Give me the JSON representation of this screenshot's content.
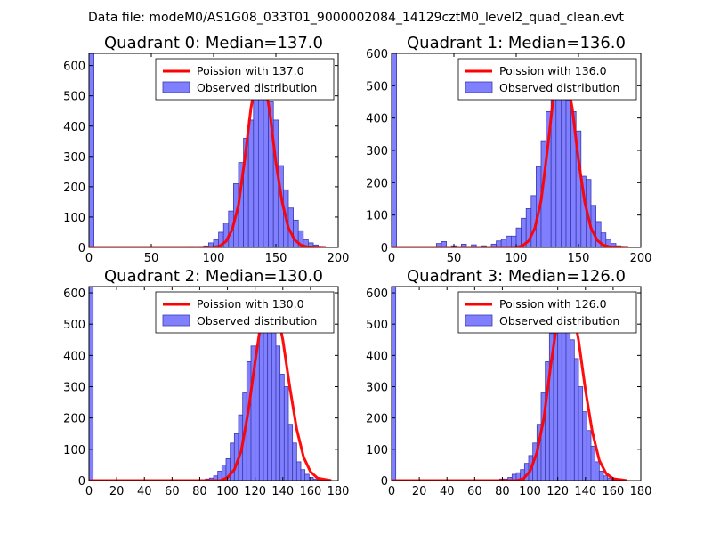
{
  "figure_title": "Data file: modeM0/AS1G08_033T01_9000002084_14129cztM0_level2_quad_clean.evt",
  "colors": {
    "bar_fill": "#8080ff",
    "bar_edge": "#3a3ab0",
    "curve": "#ff0000",
    "axis": "#000000",
    "background": "#ffffff"
  },
  "chart_data": [
    {
      "type": "bar",
      "title": "Quadrant 0: Median=137.0",
      "xlim": [
        0,
        200
      ],
      "ylim": [
        0,
        640
      ],
      "xticks": [
        0,
        50,
        100,
        150,
        200
      ],
      "yticks": [
        0,
        100,
        200,
        300,
        400,
        500,
        600
      ],
      "legend_position": "top-right",
      "series": [
        {
          "name": "Poission with 137.0",
          "kind": "line",
          "mean": 137.0,
          "x": [
            0,
            100,
            105,
            110,
            115,
            120,
            125,
            130,
            135,
            137,
            140,
            145,
            150,
            155,
            160,
            165,
            170,
            175,
            190
          ],
          "y": [
            0,
            0,
            5,
            20,
            60,
            140,
            290,
            460,
            580,
            610,
            565,
            450,
            280,
            150,
            65,
            25,
            8,
            2,
            0
          ]
        },
        {
          "name": "Observed distribution",
          "kind": "histogram",
          "bin_width": 4,
          "bins": [
            0,
            80,
            88,
            92,
            96,
            100,
            104,
            108,
            112,
            116,
            120,
            124,
            128,
            132,
            136,
            140,
            144,
            148,
            152,
            156,
            160,
            164,
            168,
            172,
            176,
            180,
            184
          ],
          "counts": [
            640,
            3,
            3,
            5,
            15,
            25,
            50,
            80,
            120,
            210,
            280,
            360,
            420,
            490,
            580,
            555,
            480,
            420,
            270,
            190,
            130,
            90,
            55,
            25,
            15,
            8,
            3
          ]
        }
      ]
    },
    {
      "type": "bar",
      "title": "Quadrant 1: Median=136.0",
      "xlim": [
        0,
        200
      ],
      "ylim": [
        0,
        600
      ],
      "xticks": [
        0,
        50,
        100,
        150,
        200
      ],
      "yticks": [
        0,
        100,
        200,
        300,
        400,
        500,
        600
      ],
      "legend_position": "top-right",
      "series": [
        {
          "name": "Poission with 136.0",
          "kind": "line",
          "mean": 136.0,
          "x": [
            0,
            100,
            105,
            110,
            115,
            120,
            125,
            130,
            135,
            136,
            140,
            145,
            150,
            155,
            160,
            165,
            170,
            175,
            190
          ],
          "y": [
            0,
            0,
            5,
            20,
            60,
            145,
            300,
            470,
            560,
            570,
            540,
            430,
            270,
            140,
            60,
            22,
            7,
            2,
            0
          ]
        },
        {
          "name": "Observed distribution",
          "kind": "histogram",
          "bin_width": 4,
          "bins": [
            0,
            36,
            40,
            48,
            56,
            64,
            72,
            80,
            84,
            88,
            92,
            96,
            100,
            104,
            108,
            112,
            116,
            120,
            124,
            128,
            132,
            136,
            140,
            144,
            148,
            152,
            156,
            160,
            164,
            168,
            172,
            176,
            180
          ],
          "counts": [
            600,
            12,
            18,
            5,
            10,
            8,
            5,
            10,
            20,
            25,
            35,
            35,
            60,
            90,
            120,
            160,
            250,
            330,
            420,
            500,
            535,
            550,
            455,
            420,
            360,
            220,
            210,
            130,
            80,
            45,
            25,
            12,
            5
          ]
        }
      ]
    },
    {
      "type": "bar",
      "title": "Quadrant 2: Median=130.0",
      "xlim": [
        0,
        180
      ],
      "ylim": [
        0,
        620
      ],
      "xticks": [
        0,
        20,
        40,
        60,
        80,
        100,
        120,
        140,
        160,
        180
      ],
      "yticks": [
        0,
        100,
        200,
        300,
        400,
        500,
        600
      ],
      "legend_position": "top-right",
      "series": [
        {
          "name": "Poission with 130.0",
          "kind": "line",
          "mean": 130.0,
          "x": [
            0,
            95,
            100,
            105,
            110,
            115,
            120,
            125,
            130,
            135,
            140,
            145,
            150,
            155,
            160,
            165,
            175
          ],
          "y": [
            0,
            0,
            10,
            35,
            95,
            220,
            380,
            530,
            590,
            560,
            450,
            300,
            165,
            75,
            28,
            8,
            0
          ]
        },
        {
          "name": "Observed distribution",
          "kind": "histogram",
          "bin_width": 3,
          "bins": [
            0,
            84,
            87,
            90,
            93,
            96,
            99,
            102,
            105,
            108,
            111,
            114,
            117,
            120,
            123,
            126,
            129,
            132,
            135,
            138,
            141,
            144,
            147,
            150,
            153,
            156,
            159,
            162,
            165,
            168
          ],
          "counts": [
            620,
            5,
            8,
            15,
            30,
            50,
            70,
            120,
            150,
            210,
            280,
            380,
            430,
            430,
            490,
            560,
            555,
            500,
            430,
            340,
            300,
            180,
            120,
            60,
            35,
            20,
            10,
            5,
            3,
            2
          ]
        }
      ]
    },
    {
      "type": "bar",
      "title": "Quadrant 3: Median=126.0",
      "xlim": [
        0,
        180
      ],
      "ylim": [
        0,
        620
      ],
      "xticks": [
        0,
        20,
        40,
        60,
        80,
        100,
        120,
        140,
        160,
        180
      ],
      "yticks": [
        0,
        100,
        200,
        300,
        400,
        500,
        600
      ],
      "legend_position": "top-right",
      "series": [
        {
          "name": "Poission with 126.0",
          "kind": "line",
          "mean": 126.0,
          "x": [
            0,
            90,
            95,
            100,
            105,
            110,
            115,
            120,
            126,
            130,
            135,
            140,
            145,
            150,
            155,
            160,
            170
          ],
          "y": [
            0,
            0,
            5,
            30,
            90,
            200,
            370,
            520,
            600,
            570,
            450,
            290,
            155,
            65,
            22,
            6,
            0
          ]
        },
        {
          "name": "Observed distribution",
          "kind": "histogram",
          "bin_width": 3,
          "bins": [
            0,
            78,
            81,
            84,
            87,
            90,
            93,
            96,
            99,
            102,
            105,
            108,
            111,
            114,
            117,
            120,
            123,
            126,
            129,
            132,
            135,
            138,
            141,
            144,
            147,
            150,
            153,
            156,
            159,
            162,
            165
          ],
          "counts": [
            620,
            5,
            5,
            10,
            20,
            25,
            35,
            55,
            80,
            120,
            180,
            280,
            380,
            470,
            520,
            560,
            500,
            480,
            450,
            390,
            300,
            220,
            160,
            110,
            60,
            30,
            15,
            8,
            5,
            3,
            2
          ]
        }
      ]
    }
  ]
}
